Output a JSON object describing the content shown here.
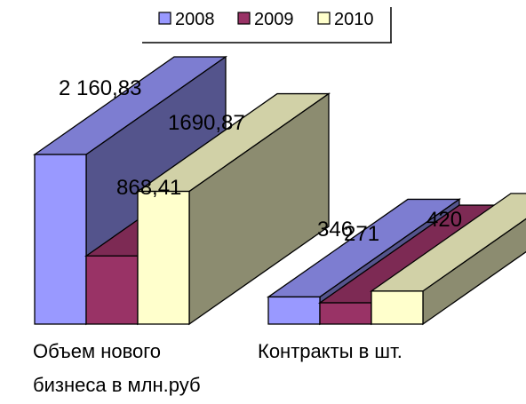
{
  "chart_data": {
    "type": "bar",
    "style": "3d-clustered",
    "title": "",
    "xlabel": "",
    "ylabel": "",
    "grid": false,
    "legend_position": "top",
    "categories": [
      [
        "Объем нового",
        "бизнеса в млн.руб"
      ],
      [
        "Контракты в шт."
      ]
    ],
    "series": [
      {
        "name": "2008",
        "color": "#9999ff",
        "values": [
          2160.83,
          346
        ],
        "labels": [
          "2 160,83",
          "346"
        ]
      },
      {
        "name": "2009",
        "color": "#993366",
        "values": [
          868.41,
          271
        ],
        "labels": [
          "868,41",
          "271"
        ]
      },
      {
        "name": "2010",
        "color": "#ffffcc",
        "values": [
          1690.87,
          420
        ],
        "labels": [
          "1690,87",
          "420"
        ]
      }
    ]
  }
}
